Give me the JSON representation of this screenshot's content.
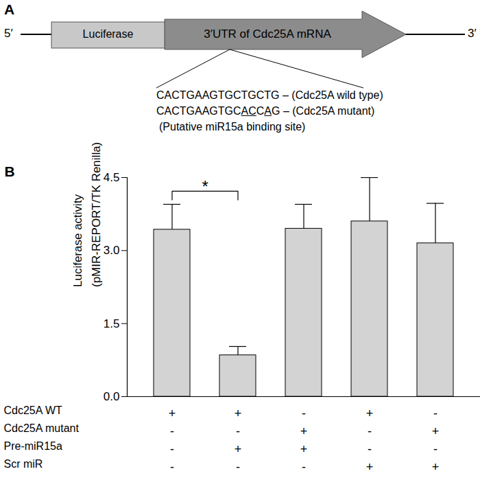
{
  "panel_a": {
    "label": "A",
    "five_prime": "5′",
    "three_prime": "3′",
    "boxes": [
      "Luciferase",
      "3′UTR of Cdc25A mRNA"
    ],
    "sequences": [
      {
        "segments": [
          {
            "text": "CACTGAAGTGCTGCTG",
            "underline": false
          }
        ],
        "label": "– (Cdc25A wild type)"
      },
      {
        "segments": [
          {
            "text": "CACTGAAGTGC",
            "underline": false
          },
          {
            "text": "AC",
            "underline": true
          },
          {
            "text": "C",
            "underline": false
          },
          {
            "text": "A",
            "underline": true
          },
          {
            "text": "G",
            "underline": false
          }
        ],
        "label": "– (Cdc25A mutant)"
      }
    ],
    "note": "(Putative miR15a binding site)"
  },
  "chart_data": {
    "type": "bar",
    "panel_label": "B",
    "y_label": [
      "Luciferase activity",
      "(pMIR-REPORT/TK Renilla)"
    ],
    "categories": [
      null,
      null,
      null,
      null,
      null
    ],
    "values": [
      3.43,
      0.85,
      3.45,
      3.6,
      3.15
    ],
    "errors": [
      0.52,
      0.18,
      0.5,
      0.9,
      0.82
    ],
    "color": "#d3d3d3",
    "ylim": [
      0,
      4.5
    ],
    "yticks": [
      {
        "value": 0,
        "label": "0.0"
      },
      1.5,
      {
        "value": 3,
        "label": "3.0"
      },
      4.5
    ],
    "tick_labels": "y",
    "conditions": [
      {
        "name": "Cdc25A WT",
        "values": [
          "+",
          "+",
          "-",
          "+",
          "-"
        ]
      },
      {
        "name": "Cdc25A mutant",
        "values": [
          "-",
          "-",
          "+",
          "-",
          "+"
        ]
      },
      {
        "name": "Pre-miR15a",
        "values": [
          "-",
          "+",
          "+",
          "-",
          "-"
        ]
      },
      {
        "name": "Scr miR",
        "values": [
          "-",
          "-",
          "-",
          "+",
          "+"
        ]
      }
    ],
    "significance": [
      {
        "between": [
          0,
          1
        ],
        "label": "*"
      }
    ]
  }
}
